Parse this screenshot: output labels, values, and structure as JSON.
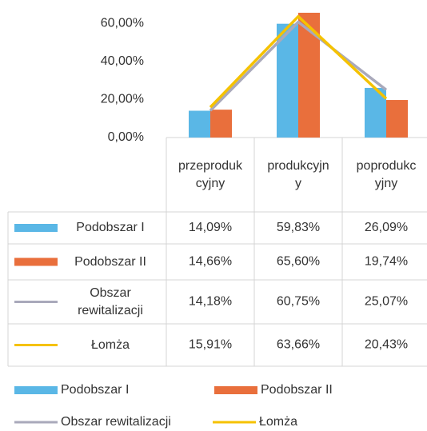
{
  "chart_data": {
    "type": "bar",
    "categories": [
      "przeprodukcyjny",
      "produkcyjny",
      "poprodukcyjny"
    ],
    "series": [
      {
        "name": "Podobszar I",
        "type": "bar",
        "color": "#5ab7e6",
        "values": [
          14.09,
          59.83,
          26.09
        ],
        "value_labels": [
          "14,09%",
          "59,83%",
          "26,09%"
        ]
      },
      {
        "name": "Podobszar II",
        "type": "bar",
        "color": "#e96f3c",
        "values": [
          14.66,
          65.6,
          19.74
        ],
        "value_labels": [
          "14,66%",
          "65,60%",
          "19,74%"
        ]
      },
      {
        "name": "Obszar rewitalizacji",
        "type": "line",
        "color": "#a9a9bb",
        "values": [
          14.18,
          60.75,
          25.07
        ],
        "value_labels": [
          "14,18%",
          "60,75%",
          "25,07%"
        ]
      },
      {
        "name": "Łomża",
        "type": "line",
        "color": "#f5c200",
        "values": [
          15.91,
          63.66,
          20.43
        ],
        "value_labels": [
          "15,91%",
          "63,66%",
          "20,43%"
        ]
      }
    ],
    "ylim": [
      0,
      66
    ],
    "yticks": [
      {
        "value": 0,
        "label": "0,00%"
      },
      {
        "value": 20,
        "label": "20,00%"
      },
      {
        "value": 40,
        "label": "40,00%"
      },
      {
        "value": 60,
        "label": "60,00%"
      }
    ],
    "legend": "bottom"
  }
}
